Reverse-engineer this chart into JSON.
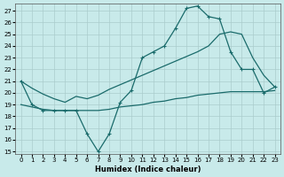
{
  "xlabel": "Humidex (Indice chaleur)",
  "bg_color": "#c8eaea",
  "grid_color": "#aacccc",
  "line_color": "#1a6b6b",
  "xlim": [
    -0.5,
    23.5
  ],
  "ylim": [
    14.8,
    27.6
  ],
  "yticks": [
    15,
    16,
    17,
    18,
    19,
    20,
    21,
    22,
    23,
    24,
    25,
    26,
    27
  ],
  "xticks": [
    0,
    1,
    2,
    3,
    4,
    5,
    6,
    7,
    8,
    9,
    10,
    11,
    12,
    13,
    14,
    15,
    16,
    17,
    18,
    19,
    20,
    21,
    22,
    23
  ],
  "line_jagged_x": [
    0,
    1,
    2,
    3,
    4,
    5,
    6,
    7,
    8,
    9,
    10,
    11,
    12,
    13,
    14,
    15,
    16,
    17,
    18,
    19,
    20,
    21,
    22,
    23
  ],
  "line_jagged_y": [
    21.0,
    19.0,
    18.5,
    18.5,
    18.5,
    18.5,
    16.5,
    15.0,
    16.5,
    19.2,
    20.2,
    23.0,
    23.5,
    24.0,
    25.5,
    27.2,
    27.4,
    26.5,
    26.3,
    23.5,
    22.0,
    22.0,
    20.0,
    20.5
  ],
  "line_upper_x": [
    0,
    1,
    2,
    3,
    4,
    5,
    6,
    7,
    8,
    9,
    10,
    11,
    12,
    13,
    14,
    15,
    16,
    17,
    18,
    19,
    20,
    21,
    22,
    23
  ],
  "line_upper_y": [
    21.0,
    20.4,
    19.9,
    19.5,
    19.2,
    19.7,
    19.5,
    19.8,
    20.3,
    20.7,
    21.1,
    21.5,
    21.9,
    22.3,
    22.7,
    23.1,
    23.5,
    24.0,
    25.0,
    25.2,
    25.0,
    23.0,
    21.5,
    20.5
  ],
  "line_lower_x": [
    0,
    1,
    2,
    3,
    4,
    5,
    6,
    7,
    8,
    9,
    10,
    11,
    12,
    13,
    14,
    15,
    16,
    17,
    18,
    19,
    20,
    21,
    22,
    23
  ],
  "line_lower_y": [
    19.0,
    18.8,
    18.6,
    18.5,
    18.5,
    18.5,
    18.5,
    18.5,
    18.6,
    18.8,
    18.9,
    19.0,
    19.2,
    19.3,
    19.5,
    19.6,
    19.8,
    19.9,
    20.0,
    20.1,
    20.1,
    20.1,
    20.1,
    20.2
  ]
}
